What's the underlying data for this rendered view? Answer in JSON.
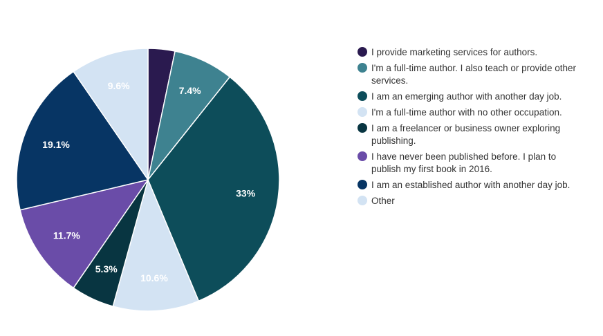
{
  "chart_data": {
    "type": "pie",
    "title": "",
    "slices": [
      {
        "label": "I provide marketing services for authors.",
        "value": 3.3,
        "display": "",
        "color": "#2a1a4f",
        "text_color": "#ffffff"
      },
      {
        "label": "I'm a full-time author. I also teach or provide other services.",
        "value": 7.4,
        "display": "7.4%",
        "color": "#3e8290",
        "text_color": "#ffffff"
      },
      {
        "label": "I am an emerging author with another day job.",
        "value": 33,
        "display": "33%",
        "color": "#0d4d5a",
        "text_color": "#ffffff"
      },
      {
        "label": "I'm a full-time author with no other occupation.",
        "value": 10.6,
        "display": "10.6%",
        "color": "#d3e3f3",
        "text_color": "#ffffff"
      },
      {
        "label": "I am a freelancer or business owner exploring publishing.",
        "value": 5.3,
        "display": "5.3%",
        "color": "#083541",
        "text_color": "#ffffff"
      },
      {
        "label": "I have never been published before. I plan to publish my first book in 2016.",
        "value": 11.7,
        "display": "11.7%",
        "color": "#6a4ca8",
        "text_color": "#ffffff"
      },
      {
        "label": "I am an established author with another day job.",
        "value": 19.1,
        "display": "19.1%",
        "color": "#073564",
        "text_color": "#ffffff"
      },
      {
        "label": "Other",
        "value": 9.6,
        "display": "9.6%",
        "color": "#d3e3f3",
        "text_color": "#ffffff"
      }
    ],
    "legend_position": "right"
  }
}
